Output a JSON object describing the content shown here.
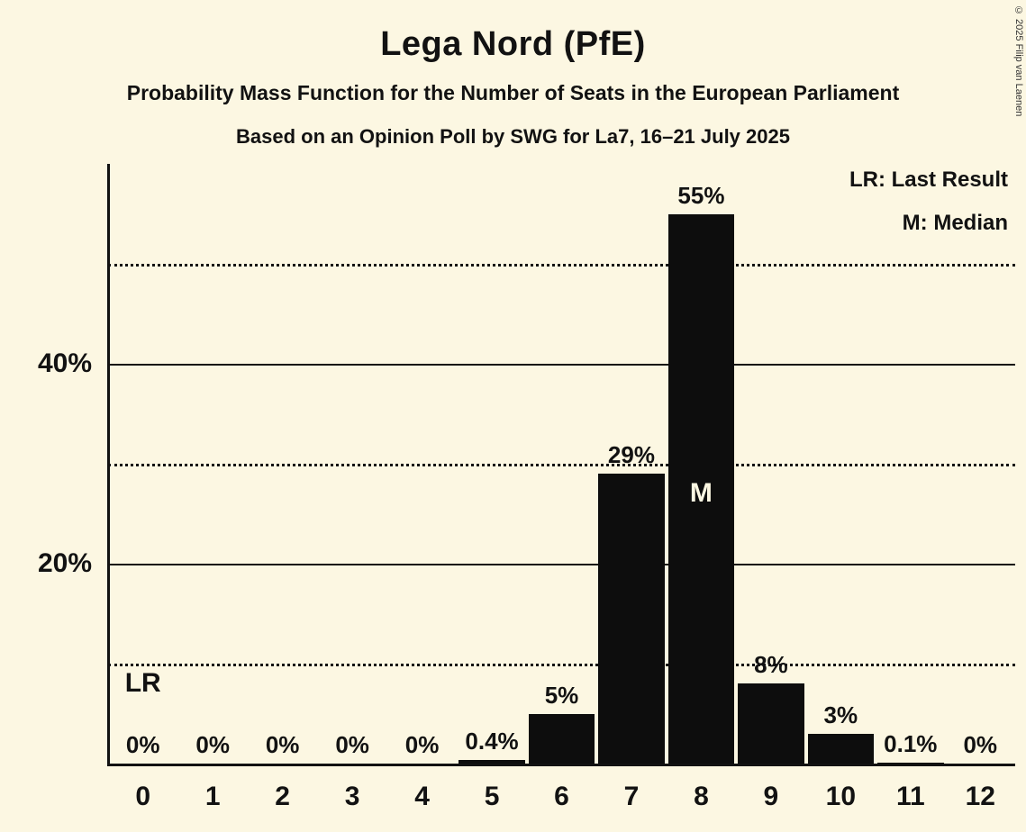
{
  "title": "Lega Nord (PfE)",
  "subtitle1": "Probability Mass Function for the Number of Seats in the European Parliament",
  "subtitle2": "Based on an Opinion Poll by SWG for La7, 16–21 July 2025",
  "copyright": "© 2025 Filip van Laenen",
  "legend": {
    "lr": "LR: Last Result",
    "m": "M: Median"
  },
  "colors": {
    "background": "#FCF7E2",
    "bar": "#0D0D0D",
    "text": "#121212"
  },
  "chart_data": {
    "type": "bar",
    "title": "Lega Nord (PfE)",
    "xlabel": "Number of Seats in the European Parliament",
    "ylabel": "Probability",
    "categories": [
      "0",
      "1",
      "2",
      "3",
      "4",
      "5",
      "6",
      "7",
      "8",
      "9",
      "10",
      "11",
      "12"
    ],
    "values": [
      0,
      0,
      0,
      0,
      0,
      0.4,
      5,
      29,
      55,
      8,
      3,
      0.1,
      0
    ],
    "bar_labels": [
      "0%",
      "0%",
      "0%",
      "0%",
      "0%",
      "0.4%",
      "5%",
      "29%",
      "55%",
      "8%",
      "3%",
      "0.1%",
      "0%"
    ],
    "ylim": [
      0,
      60
    ],
    "y_ticks": [
      {
        "value": 20,
        "label": "20%"
      },
      {
        "value": 40,
        "label": "40%"
      }
    ],
    "solid_gridlines": [
      20,
      40
    ],
    "dotted_gridlines": [
      10,
      30,
      50
    ],
    "annotations": {
      "last_result_label": "LR",
      "last_result_seat": 0,
      "median_label": "M",
      "median_seat": 8
    },
    "legend_position": "top-right",
    "grid": "horizontal"
  }
}
